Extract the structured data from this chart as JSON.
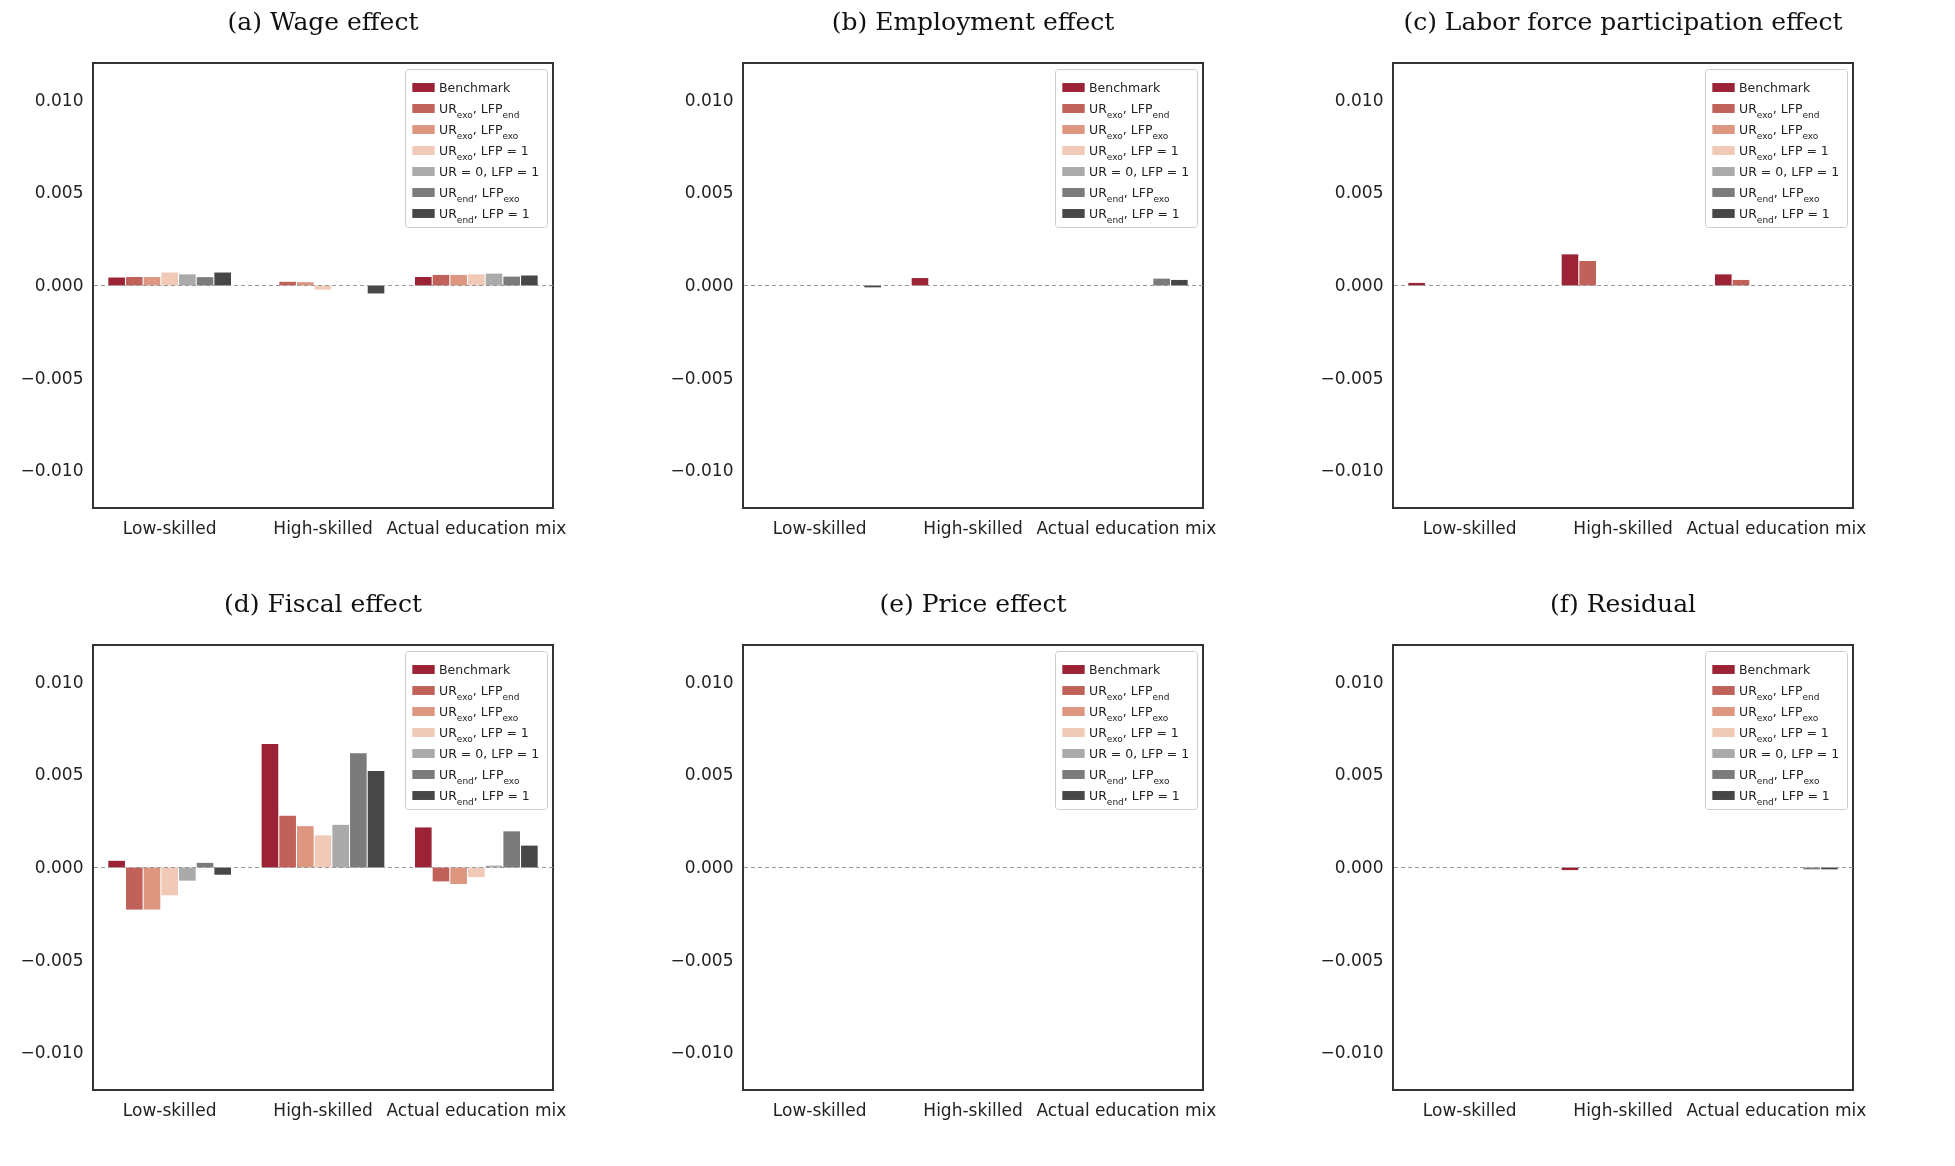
{
  "chart_data": [
    {
      "type": "bar",
      "title": "(a) Wage effect",
      "categories": [
        "Low-skilled",
        "High-skilled",
        "Actual education mix"
      ],
      "ylim": [
        -0.012,
        0.012
      ],
      "yticks": [
        {
          "value": -0.01,
          "label": "−0.010"
        },
        {
          "value": -0.005,
          "label": "−0.005"
        },
        {
          "value": 0,
          "label": "0.000"
        },
        {
          "value": 0.005,
          "label": "0.005"
        },
        {
          "value": 0.01,
          "label": "0.010"
        }
      ],
      "legend": "top right",
      "ref_lines": [
        {
          "axis": "y",
          "value": 0,
          "color": "#999999",
          "line_style": "dashed"
        }
      ],
      "series": [
        {
          "name": "Benchmark",
          "color": "#9b2335",
          "values": [
            0.00043,
            null,
            0.00046
          ]
        },
        {
          "name": "UR$_{exo}$, LFP$_{end}$",
          "color": "#c0615a",
          "values": [
            0.00046,
            0.0002,
            0.00057
          ]
        },
        {
          "name": "UR$_{exo}$, LFP$_{exo}$",
          "color": "#dd9680",
          "values": [
            0.00046,
            0.00018,
            0.00057
          ]
        },
        {
          "name": "UR$_{exo}$, LFP = 1",
          "color": "#f0cab6",
          "values": [
            0.0007,
            -0.00022,
            0.0006
          ]
        },
        {
          "name": "UR = 0, LFP = 1",
          "color": "#aaaaaa",
          "values": [
            0.0006,
            null,
            0.00064
          ]
        },
        {
          "name": "UR$_{end}$, LFP$_{exo}$",
          "color": "#7b7b7b",
          "values": [
            0.00045,
            null,
            0.00048
          ]
        },
        {
          "name": "UR$_{end}$, LFP = 1",
          "color": "#474747",
          "values": [
            0.0007,
            -0.00043,
            0.00054
          ]
        }
      ]
    },
    {
      "type": "bar",
      "title": "(b) Employment effect",
      "categories": [
        "Low-skilled",
        "High-skilled",
        "Actual education mix"
      ],
      "ylim": [
        -0.012,
        0.012
      ],
      "yticks": [
        {
          "value": -0.01,
          "label": "−0.010"
        },
        {
          "value": -0.005,
          "label": "−0.005"
        },
        {
          "value": 0,
          "label": "0.000"
        },
        {
          "value": 0.005,
          "label": "0.005"
        },
        {
          "value": 0.01,
          "label": "0.010"
        }
      ],
      "legend": "top right",
      "ref_lines": [
        {
          "axis": "y",
          "value": 0,
          "color": "#999999",
          "line_style": "dashed"
        }
      ],
      "series": [
        {
          "name": "Benchmark",
          "color": "#9b2335",
          "values": [
            null,
            0.0004,
            null
          ]
        },
        {
          "name": "UR$_{exo}$, LFP$_{end}$",
          "color": "#c0615a",
          "values": [
            null,
            null,
            null
          ]
        },
        {
          "name": "UR$_{exo}$, LFP$_{exo}$",
          "color": "#dd9680",
          "values": [
            null,
            null,
            null
          ]
        },
        {
          "name": "UR$_{exo}$, LFP = 1",
          "color": "#f0cab6",
          "values": [
            null,
            null,
            null
          ]
        },
        {
          "name": "UR = 0, LFP = 1",
          "color": "#aaaaaa",
          "values": [
            null,
            null,
            null
          ]
        },
        {
          "name": "UR$_{end}$, LFP$_{exo}$",
          "color": "#7b7b7b",
          "values": [
            null,
            null,
            0.00037
          ]
        },
        {
          "name": "UR$_{end}$, LFP = 1",
          "color": "#474747",
          "values": [
            -0.0001,
            null,
            0.0003
          ]
        }
      ]
    },
    {
      "type": "bar",
      "title": "(c) Labor force participation effect",
      "categories": [
        "Low-skilled",
        "High-skilled",
        "Actual education mix"
      ],
      "ylim": [
        -0.012,
        0.012
      ],
      "yticks": [
        {
          "value": -0.01,
          "label": "−0.010"
        },
        {
          "value": -0.005,
          "label": "−0.005"
        },
        {
          "value": 0,
          "label": "0.000"
        },
        {
          "value": 0.005,
          "label": "0.005"
        },
        {
          "value": 0.01,
          "label": "0.010"
        }
      ],
      "legend": "top right",
      "ref_lines": [
        {
          "axis": "y",
          "value": 0,
          "color": "#999999",
          "line_style": "dashed"
        }
      ],
      "series": [
        {
          "name": "Benchmark",
          "color": "#9b2335",
          "values": [
            0.00014,
            0.00168,
            0.0006
          ]
        },
        {
          "name": "UR$_{exo}$, LFP$_{end}$",
          "color": "#c0615a",
          "values": [
            null,
            0.00132,
            0.0003
          ]
        },
        {
          "name": "UR$_{exo}$, LFP$_{exo}$",
          "color": "#dd9680",
          "values": [
            null,
            null,
            null
          ]
        },
        {
          "name": "UR$_{exo}$, LFP = 1",
          "color": "#f0cab6",
          "values": [
            null,
            null,
            null
          ]
        },
        {
          "name": "UR = 0, LFP = 1",
          "color": "#aaaaaa",
          "values": [
            null,
            null,
            null
          ]
        },
        {
          "name": "UR$_{end}$, LFP$_{exo}$",
          "color": "#7b7b7b",
          "values": [
            null,
            null,
            null
          ]
        },
        {
          "name": "UR$_{end}$, LFP = 1",
          "color": "#474747",
          "values": [
            null,
            null,
            null
          ]
        }
      ]
    },
    {
      "type": "bar",
      "title": "(d) Fiscal effect",
      "categories": [
        "Low-skilled",
        "High-skilled",
        "Actual education mix"
      ],
      "ylim": [
        -0.012,
        0.012
      ],
      "yticks": [
        {
          "value": -0.01,
          "label": "−0.010"
        },
        {
          "value": -0.005,
          "label": "−0.005"
        },
        {
          "value": 0,
          "label": "0.000"
        },
        {
          "value": 0.005,
          "label": "0.005"
        },
        {
          "value": 0.01,
          "label": "0.010"
        }
      ],
      "legend": "top right",
      "ref_lines": [
        {
          "axis": "y",
          "value": 0,
          "color": "#999999",
          "line_style": "dashed"
        }
      ],
      "series": [
        {
          "name": "Benchmark",
          "color": "#9b2335",
          "values": [
            0.00036,
            0.00666,
            0.00216
          ]
        },
        {
          "name": "UR$_{exo}$, LFP$_{end}$",
          "color": "#c0615a",
          "values": [
            -0.00227,
            0.00279,
            -0.00075
          ]
        },
        {
          "name": "UR$_{exo}$, LFP$_{exo}$",
          "color": "#dd9680",
          "values": [
            -0.00227,
            0.00223,
            -0.00089
          ]
        },
        {
          "name": "UR$_{exo}$, LFP = 1",
          "color": "#f0cab6",
          "values": [
            -0.0015,
            0.00173,
            -0.00052
          ]
        },
        {
          "name": "UR = 0, LFP = 1",
          "color": "#aaaaaa",
          "values": [
            -0.00071,
            0.0023,
            0.0001
          ]
        },
        {
          "name": "UR$_{end}$, LFP$_{exo}$",
          "color": "#7b7b7b",
          "values": [
            0.00025,
            0.00616,
            0.00195
          ]
        },
        {
          "name": "UR$_{end}$, LFP = 1",
          "color": "#474747",
          "values": [
            -0.00039,
            0.00521,
            0.00118
          ]
        }
      ]
    },
    {
      "type": "bar",
      "title": "(e) Price effect",
      "categories": [
        "Low-skilled",
        "High-skilled",
        "Actual education mix"
      ],
      "ylim": [
        -0.012,
        0.012
      ],
      "yticks": [
        {
          "value": -0.01,
          "label": "−0.010"
        },
        {
          "value": -0.005,
          "label": "−0.005"
        },
        {
          "value": 0,
          "label": "0.000"
        },
        {
          "value": 0.005,
          "label": "0.005"
        },
        {
          "value": 0.01,
          "label": "0.010"
        }
      ],
      "legend": "top right",
      "ref_lines": [
        {
          "axis": "y",
          "value": 0,
          "color": "#999999",
          "line_style": "dashed"
        }
      ],
      "series": [
        {
          "name": "Benchmark",
          "color": "#9b2335",
          "values": [
            null,
            null,
            null
          ]
        },
        {
          "name": "UR$_{exo}$, LFP$_{end}$",
          "color": "#c0615a",
          "values": [
            null,
            null,
            null
          ]
        },
        {
          "name": "UR$_{exo}$, LFP$_{exo}$",
          "color": "#dd9680",
          "values": [
            null,
            null,
            null
          ]
        },
        {
          "name": "UR$_{exo}$, LFP = 1",
          "color": "#f0cab6",
          "values": [
            null,
            null,
            null
          ]
        },
        {
          "name": "UR = 0, LFP = 1",
          "color": "#aaaaaa",
          "values": [
            null,
            null,
            null
          ]
        },
        {
          "name": "UR$_{end}$, LFP$_{exo}$",
          "color": "#7b7b7b",
          "values": [
            null,
            null,
            null
          ]
        },
        {
          "name": "UR$_{end}$, LFP = 1",
          "color": "#474747",
          "values": [
            null,
            null,
            null
          ]
        }
      ]
    },
    {
      "type": "bar",
      "title": "(f) Residual",
      "categories": [
        "Low-skilled",
        "High-skilled",
        "Actual education mix"
      ],
      "ylim": [
        -0.012,
        0.012
      ],
      "yticks": [
        {
          "value": -0.01,
          "label": "−0.010"
        },
        {
          "value": -0.005,
          "label": "−0.005"
        },
        {
          "value": 0,
          "label": "0.000"
        },
        {
          "value": 0.005,
          "label": "0.005"
        },
        {
          "value": 0.01,
          "label": "0.010"
        }
      ],
      "legend": "top right",
      "ref_lines": [
        {
          "axis": "y",
          "value": 0,
          "color": "#999999",
          "line_style": "dashed"
        }
      ],
      "series": [
        {
          "name": "Benchmark",
          "color": "#9b2335",
          "values": [
            null,
            -0.00014,
            null
          ]
        },
        {
          "name": "UR$_{exo}$, LFP$_{end}$",
          "color": "#c0615a",
          "values": [
            null,
            null,
            null
          ]
        },
        {
          "name": "UR$_{exo}$, LFP$_{exo}$",
          "color": "#dd9680",
          "values": [
            null,
            null,
            null
          ]
        },
        {
          "name": "UR$_{exo}$, LFP = 1",
          "color": "#f0cab6",
          "values": [
            null,
            null,
            null
          ]
        },
        {
          "name": "UR = 0, LFP = 1",
          "color": "#aaaaaa",
          "values": [
            null,
            null,
            null
          ]
        },
        {
          "name": "UR$_{end}$, LFP$_{exo}$",
          "color": "#7b7b7b",
          "values": [
            null,
            null,
            -0.0001
          ]
        },
        {
          "name": "UR$_{end}$, LFP = 1",
          "color": "#474747",
          "values": [
            null,
            null,
            -0.0001
          ]
        }
      ]
    }
  ]
}
